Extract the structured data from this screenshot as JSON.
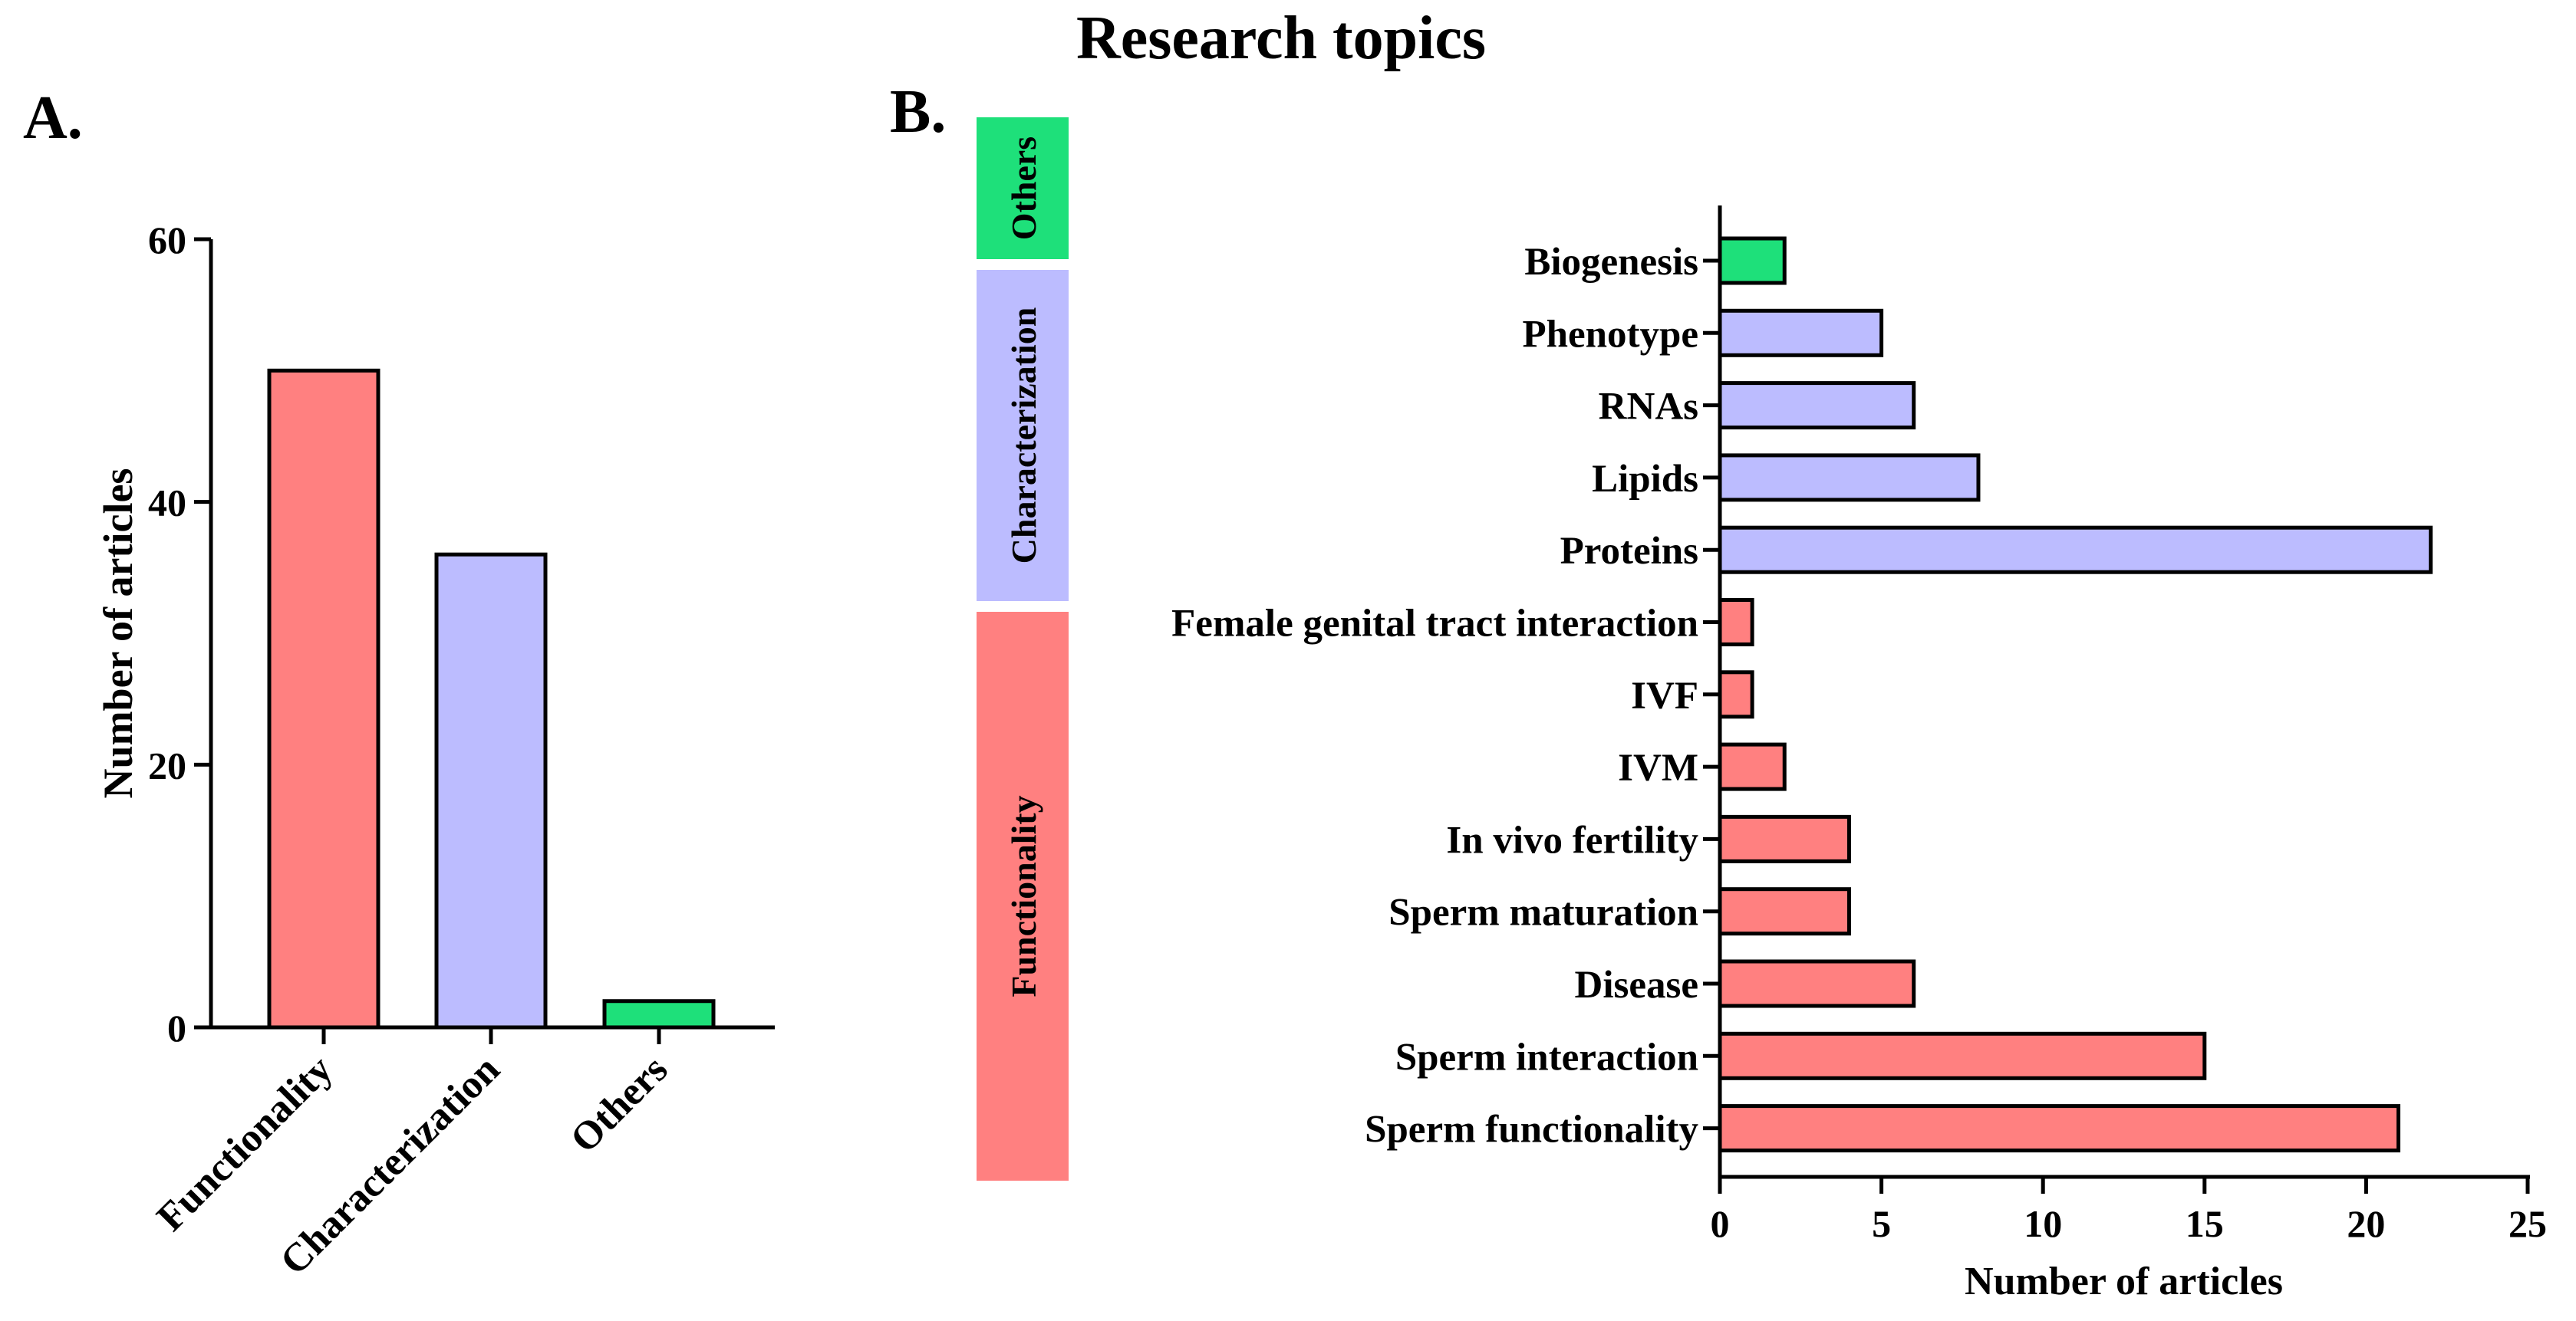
{
  "title": "Research topics",
  "colors": {
    "functionality": "#ff8080",
    "characterization": "#bcbcff",
    "others": "#1ee07a",
    "stroke": "#000000"
  },
  "chart_data": [
    {
      "panel": "A.",
      "type": "bar",
      "title": "",
      "xlabel": "",
      "ylabel": "Number of articles",
      "ylim": [
        0,
        60
      ],
      "yticks": [
        0,
        20,
        40,
        60
      ],
      "categories": [
        "Functionality",
        "Characterization",
        "Others"
      ],
      "values": [
        50,
        36,
        2
      ],
      "category_groups": [
        "functionality",
        "characterization",
        "others"
      ]
    },
    {
      "panel": "B.",
      "type": "bar",
      "orientation": "horizontal",
      "title": "",
      "xlabel": "Number of articles",
      "ylabel": "",
      "xlim": [
        0,
        25
      ],
      "xticks": [
        0,
        5,
        10,
        15,
        20,
        25
      ],
      "categories": [
        "Biogenesis",
        "Phenotype",
        "RNAs",
        "Lipids",
        "Proteins",
        "Female genital tract interaction",
        "IVF",
        "IVM",
        "In vivo fertility",
        "Sperm maturation",
        "Disease",
        "Sperm interaction",
        "Sperm functionality"
      ],
      "values": [
        2,
        5,
        6,
        8,
        22,
        1,
        1,
        2,
        4,
        4,
        6,
        15,
        21
      ],
      "category_groups": [
        "others",
        "characterization",
        "characterization",
        "characterization",
        "characterization",
        "functionality",
        "functionality",
        "functionality",
        "functionality",
        "functionality",
        "functionality",
        "functionality",
        "functionality"
      ],
      "groups": [
        {
          "key": "others",
          "label": "Others"
        },
        {
          "key": "characterization",
          "label": "Characterization"
        },
        {
          "key": "functionality",
          "label": "Functionality"
        }
      ]
    }
  ]
}
